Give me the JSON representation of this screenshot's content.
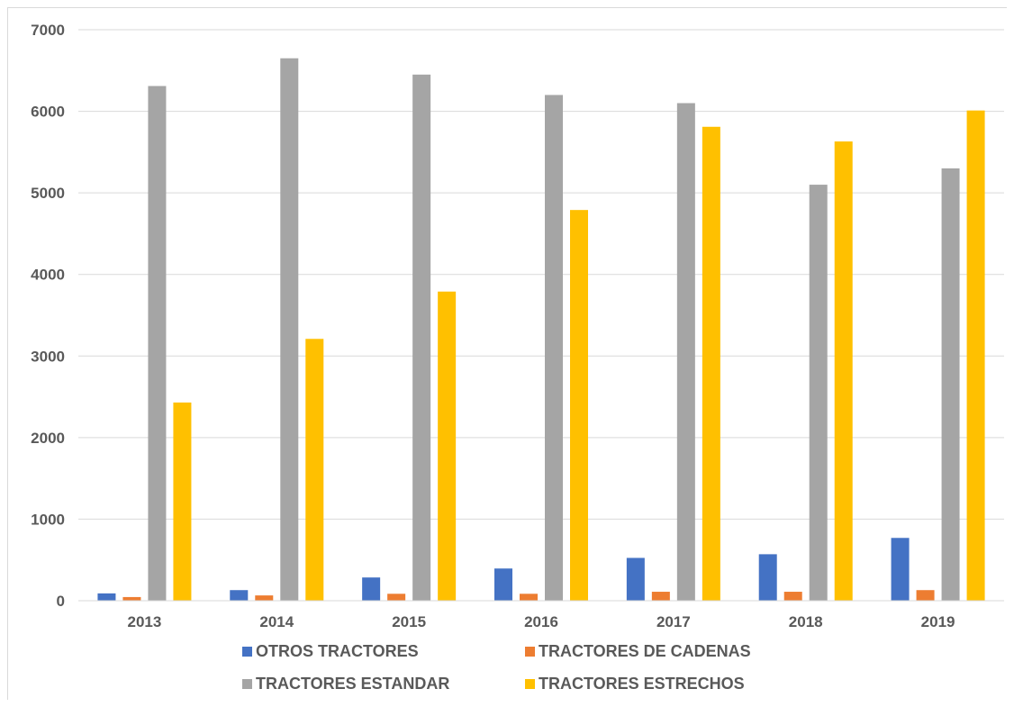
{
  "chart_data": {
    "type": "bar",
    "categories": [
      "2013",
      "2014",
      "2015",
      "2016",
      "2017",
      "2018",
      "2019"
    ],
    "series": [
      {
        "name": "OTROS TRACTORES",
        "color": "#4472c4",
        "values": [
          90,
          130,
          285,
          395,
          525,
          570,
          770
        ]
      },
      {
        "name": "TRACTORES DE CADENAS",
        "color": "#ed7d31",
        "values": [
          45,
          65,
          85,
          85,
          110,
          110,
          130
        ]
      },
      {
        "name": "TRACTORES ESTANDAR",
        "color": "#a5a5a5",
        "values": [
          6310,
          6650,
          6450,
          6200,
          6100,
          5100,
          5300
        ]
      },
      {
        "name": "TRACTORES ESTRECHOS",
        "color": "#ffc000",
        "values": [
          2430,
          3210,
          3790,
          4790,
          5810,
          5630,
          6010
        ]
      }
    ],
    "ylim": [
      0,
      7000
    ],
    "yticks": [
      "0",
      "1000",
      "2000",
      "3000",
      "4000",
      "5000",
      "6000",
      "7000"
    ],
    "grid": true,
    "legend_position": "bottom",
    "title": "",
    "xlabel": "",
    "ylabel": ""
  }
}
